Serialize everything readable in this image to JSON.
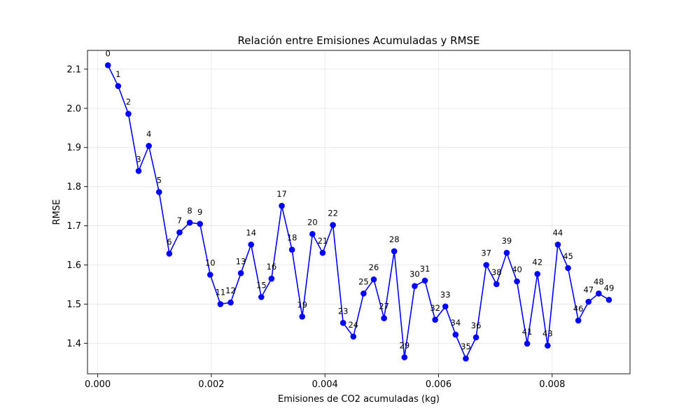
{
  "chart_data": {
    "type": "line",
    "title": "Relación entre Emisiones Acumuladas y RMSE",
    "xlabel": "Emisiones de CO2 acumuladas (kg)",
    "ylabel": "RMSE",
    "xlim": [
      -0.00018,
      0.00937
    ],
    "ylim": [
      1.322,
      2.148
    ],
    "xticks": [
      0,
      0.002,
      0.004,
      0.006,
      0.008
    ],
    "xtick_labels": [
      "0.000",
      "0.002",
      "0.004",
      "0.006",
      "0.008"
    ],
    "yticks": [
      1.4,
      1.5,
      1.6,
      1.7,
      1.8,
      1.9,
      2.0,
      2.1
    ],
    "ytick_labels": [
      "1.4",
      "1.5",
      "1.6",
      "1.7",
      "1.8",
      "1.9",
      "2.0",
      "2.1"
    ],
    "grid": true,
    "line_color": "#0000ff",
    "marker": "circle",
    "point_labels": [
      "0",
      "1",
      "2",
      "3",
      "4",
      "5",
      "6",
      "7",
      "8",
      "9",
      "10",
      "11",
      "12",
      "13",
      "14",
      "15",
      "16",
      "17",
      "18",
      "19",
      "20",
      "21",
      "22",
      "23",
      "24",
      "25",
      "26",
      "27",
      "28",
      "29",
      "30",
      "31",
      "32",
      "33",
      "34",
      "35",
      "36",
      "37",
      "38",
      "39",
      "40",
      "41",
      "42",
      "43",
      "44",
      "45",
      "46",
      "47",
      "48",
      "49"
    ],
    "x": [
      0.00018,
      0.00036,
      0.00054,
      0.00072,
      0.0009,
      0.00108,
      0.00126,
      0.00144,
      0.00162,
      0.0018,
      0.00198,
      0.00216,
      0.00234,
      0.00252,
      0.0027,
      0.00288,
      0.00306,
      0.00324,
      0.00342,
      0.0036,
      0.00378,
      0.00396,
      0.00414,
      0.00432,
      0.0045,
      0.00468,
      0.00486,
      0.00504,
      0.00522,
      0.0054,
      0.00558,
      0.00576,
      0.00594,
      0.00612,
      0.0063,
      0.00648,
      0.00666,
      0.00684,
      0.00702,
      0.0072,
      0.00738,
      0.00756,
      0.00774,
      0.00792,
      0.0081,
      0.00828,
      0.00846,
      0.00864,
      0.00882,
      0.009
    ],
    "y": [
      2.11,
      2.057,
      1.986,
      1.84,
      1.904,
      1.786,
      1.629,
      1.683,
      1.708,
      1.705,
      1.575,
      1.5,
      1.504,
      1.579,
      1.652,
      1.518,
      1.565,
      1.751,
      1.639,
      1.468,
      1.679,
      1.631,
      1.702,
      1.452,
      1.417,
      1.527,
      1.563,
      1.464,
      1.635,
      1.364,
      1.546,
      1.56,
      1.46,
      1.494,
      1.422,
      1.361,
      1.415,
      1.6,
      1.551,
      1.631,
      1.558,
      1.399,
      1.577,
      1.394,
      1.652,
      1.592,
      1.458,
      1.506,
      1.527,
      1.511
    ]
  }
}
